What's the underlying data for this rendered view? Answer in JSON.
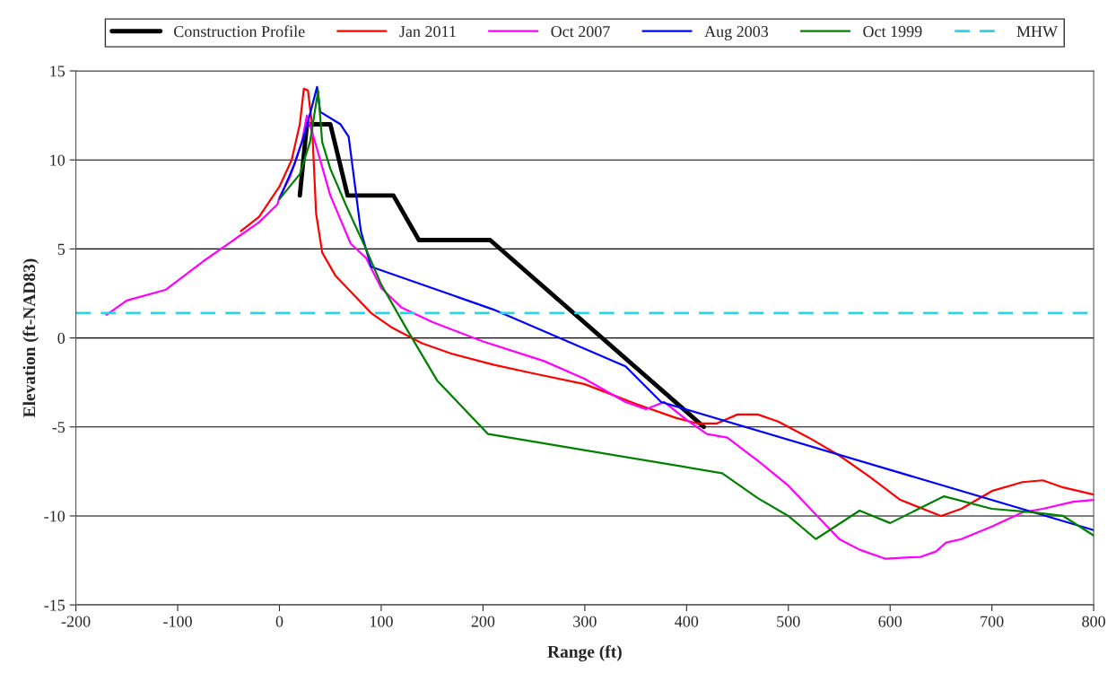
{
  "chart_data": {
    "type": "line",
    "xlabel": "Range (ft)",
    "ylabel": "Elevation (ft-NAD83)",
    "xlim": [
      -200,
      800
    ],
    "xticks": [
      -200,
      -100,
      0,
      100,
      200,
      300,
      400,
      500,
      600,
      700,
      800
    ],
    "ylim": [
      -15,
      15
    ],
    "yticks": [
      -15,
      -10,
      -5,
      0,
      5,
      10,
      15
    ],
    "grid": "y",
    "legend": "top",
    "marker": "none",
    "line_style": "solid",
    "series": [
      {
        "name": "Construction Profile",
        "color": "#000000",
        "x": [
          20,
          27,
          50,
          67,
          112,
          137,
          207,
          417
        ],
        "values": [
          8,
          12,
          12,
          8,
          8,
          5.5,
          5.5,
          -5
        ]
      },
      {
        "name": "Jan 2011",
        "color": "#ff0000",
        "x": [
          -38,
          -20,
          0,
          12,
          20,
          24,
          28,
          32,
          36,
          42,
          55,
          70,
          90,
          110,
          140,
          170,
          210,
          250,
          300,
          350,
          390,
          410,
          430,
          450,
          470,
          490,
          520,
          550,
          580,
          610,
          650,
          670,
          700,
          730,
          750,
          770,
          800
        ],
        "values": [
          6,
          6.8,
          8.5,
          10,
          12,
          14,
          13.9,
          12,
          7,
          4.8,
          3.5,
          2.6,
          1.4,
          0.6,
          -0.3,
          -0.9,
          -1.5,
          -2,
          -2.6,
          -3.7,
          -4.5,
          -4.8,
          -4.8,
          -4.3,
          -4.3,
          -4.7,
          -5.6,
          -6.6,
          -7.8,
          -9.1,
          -10,
          -9.6,
          -8.6,
          -8.1,
          -8,
          -8.4,
          -8.8
        ]
      },
      {
        "name": "Oct 2007",
        "color": "#ff00ff",
        "x": [
          -170,
          -150,
          -112,
          -75,
          -40,
          -20,
          -2,
          0,
          10,
          22,
          27,
          35,
          50,
          70,
          85,
          100,
          120,
          150,
          200,
          260,
          300,
          340,
          360,
          378,
          400,
          420,
          440,
          470,
          500,
          525,
          550,
          570,
          595,
          630,
          645,
          655,
          670,
          700,
          730,
          750,
          780,
          800
        ],
        "values": [
          1.3,
          2.1,
          2.7,
          4.3,
          5.7,
          6.5,
          7.5,
          7.9,
          9,
          11,
          12.5,
          11,
          8,
          5.3,
          4.5,
          2.8,
          1.7,
          0.9,
          -0.2,
          -1.3,
          -2.3,
          -3.6,
          -4,
          -3.6,
          -4.6,
          -5.4,
          -5.6,
          -6.9,
          -8.3,
          -9.8,
          -11.3,
          -11.9,
          -12.4,
          -12.3,
          -12,
          -11.5,
          -11.3,
          -10.6,
          -9.8,
          -9.6,
          -9.2,
          -9.1
        ]
      },
      {
        "name": "Aug 2003",
        "color": "#0000ff",
        "x": [
          0,
          15,
          25,
          37,
          40,
          60,
          68,
          80,
          90,
          210,
          340,
          375,
          800
        ],
        "values": [
          7.8,
          9.8,
          11.5,
          14.1,
          12.7,
          12,
          11.3,
          6,
          4,
          1.6,
          -1.6,
          -3.6,
          -10.8
        ]
      },
      {
        "name": "Oct 1999",
        "color": "#008000",
        "x": [
          0,
          20,
          30,
          38,
          42,
          50,
          65,
          85,
          100,
          125,
          155,
          205,
          435,
          470,
          500,
          527,
          570,
          600,
          653,
          700,
          740,
          770,
          800
        ],
        "values": [
          7.8,
          9.2,
          11,
          13.9,
          11,
          9.5,
          7.5,
          5,
          3,
          0.5,
          -2.4,
          -5.4,
          -7.6,
          -9,
          -10,
          -11.3,
          -9.7,
          -10.4,
          -8.9,
          -9.6,
          -9.8,
          -10,
          -11.1
        ]
      }
    ],
    "ref_lines": [
      {
        "axis": "y",
        "value": 1.4,
        "label": "MHW",
        "color": "#22d8e8",
        "line_style": "dashed"
      }
    ]
  }
}
